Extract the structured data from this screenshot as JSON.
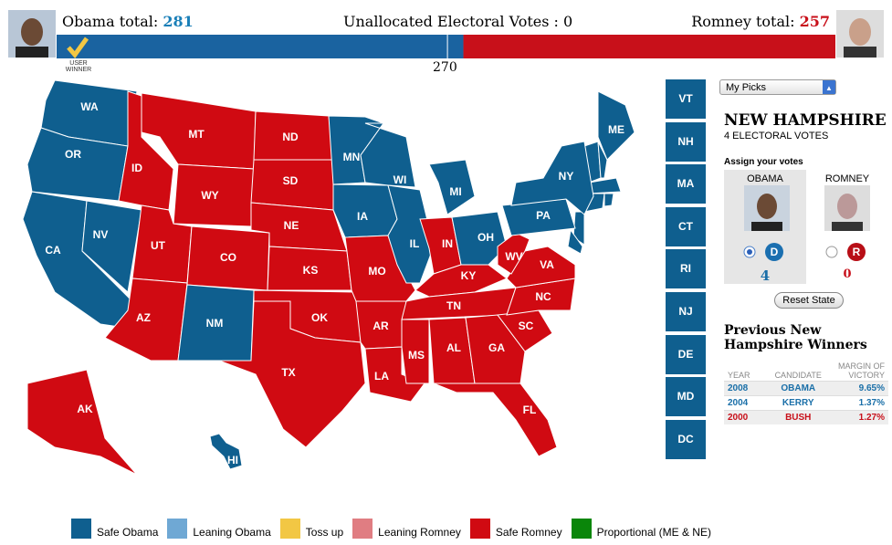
{
  "header": {
    "obama_label": "Obama total:",
    "obama_total": 281,
    "obama_color": "#1a63a0",
    "unallocated_label": "Unallocated Electoral Votes :",
    "unallocated": 0,
    "romney_label": "Romney total:",
    "romney_total": 257,
    "romney_color": "#c8101a",
    "winner_note": "USER WINNER",
    "threshold": 270
  },
  "map": {
    "states": [
      {
        "abbr": "WA",
        "color": "#0f5f8f"
      },
      {
        "abbr": "OR",
        "color": "#0f5f8f"
      },
      {
        "abbr": "CA",
        "color": "#0f5f8f"
      },
      {
        "abbr": "NV",
        "color": "#0f5f8f"
      },
      {
        "abbr": "ID",
        "color": "#d00a12"
      },
      {
        "abbr": "MT",
        "color": "#d00a12"
      },
      {
        "abbr": "WY",
        "color": "#d00a12"
      },
      {
        "abbr": "UT",
        "color": "#d00a12"
      },
      {
        "abbr": "CO",
        "color": "#d00a12"
      },
      {
        "abbr": "AZ",
        "color": "#d00a12"
      },
      {
        "abbr": "NM",
        "color": "#0f5f8f"
      },
      {
        "abbr": "ND",
        "color": "#d00a12"
      },
      {
        "abbr": "SD",
        "color": "#d00a12"
      },
      {
        "abbr": "NE",
        "color": "#d00a12"
      },
      {
        "abbr": "KS",
        "color": "#d00a12"
      },
      {
        "abbr": "OK",
        "color": "#d00a12"
      },
      {
        "abbr": "TX",
        "color": "#d00a12"
      },
      {
        "abbr": "MN",
        "color": "#0f5f8f"
      },
      {
        "abbr": "IA",
        "color": "#0f5f8f"
      },
      {
        "abbr": "MO",
        "color": "#d00a12"
      },
      {
        "abbr": "AR",
        "color": "#d00a12"
      },
      {
        "abbr": "LA",
        "color": "#d00a12"
      },
      {
        "abbr": "WI",
        "color": "#0f5f8f"
      },
      {
        "abbr": "IL",
        "color": "#0f5f8f"
      },
      {
        "abbr": "MI",
        "color": "#0f5f8f"
      },
      {
        "abbr": "IN",
        "color": "#d00a12"
      },
      {
        "abbr": "OH",
        "color": "#0f5f8f"
      },
      {
        "abbr": "KY",
        "color": "#d00a12"
      },
      {
        "abbr": "TN",
        "color": "#d00a12"
      },
      {
        "abbr": "MS",
        "color": "#d00a12"
      },
      {
        "abbr": "AL",
        "color": "#d00a12"
      },
      {
        "abbr": "GA",
        "color": "#d00a12"
      },
      {
        "abbr": "FL",
        "color": "#d00a12"
      },
      {
        "abbr": "SC",
        "color": "#d00a12"
      },
      {
        "abbr": "NC",
        "color": "#d00a12"
      },
      {
        "abbr": "VA",
        "color": "#d00a12"
      },
      {
        "abbr": "WV",
        "color": "#d00a12"
      },
      {
        "abbr": "PA",
        "color": "#0f5f8f"
      },
      {
        "abbr": "NY",
        "color": "#0f5f8f"
      },
      {
        "abbr": "ME",
        "color": "#0f5f8f"
      },
      {
        "abbr": "AK",
        "color": "#d00a12"
      },
      {
        "abbr": "HI",
        "color": "#0f5f8f"
      }
    ],
    "small_states": [
      {
        "abbr": "VT",
        "color": "#0f5f8f"
      },
      {
        "abbr": "NH",
        "color": "#0f5f8f"
      },
      {
        "abbr": "MA",
        "color": "#0f5f8f"
      },
      {
        "abbr": "CT",
        "color": "#0f5f8f"
      },
      {
        "abbr": "RI",
        "color": "#0f5f8f"
      },
      {
        "abbr": "NJ",
        "color": "#0f5f8f"
      },
      {
        "abbr": "DE",
        "color": "#0f5f8f"
      },
      {
        "abbr": "MD",
        "color": "#0f5f8f"
      },
      {
        "abbr": "DC",
        "color": "#0f5f8f"
      }
    ]
  },
  "legend": [
    {
      "label": "Safe Obama",
      "color": "#0f5f8f"
    },
    {
      "label": "Leaning Obama",
      "color": "#6fa8d4"
    },
    {
      "label": "Toss up",
      "color": "#f2c744"
    },
    {
      "label": "Leaning Romney",
      "color": "#e07d82"
    },
    {
      "label": "Safe Romney",
      "color": "#d00a12"
    },
    {
      "label": "Proportional (ME & NE)",
      "color": "#0a860a"
    }
  ],
  "panel": {
    "dropdown": "My Picks",
    "state": "NEW HAMPSHIRE",
    "electoral_votes": "4 ELECTORAL VOTES",
    "assign": "Assign your votes",
    "obama": "OBAMA",
    "romney": "ROMNEY",
    "d": "D",
    "r": "R",
    "obama_votes": 4,
    "romney_votes": 0,
    "reset": "Reset State",
    "history_title": "Previous New Hampshire Winners",
    "table": {
      "headers": [
        "YEAR",
        "CANDIDATE",
        "MARGIN OF VICTORY"
      ],
      "rows": [
        [
          "2008",
          "OBAMA",
          "9.65%"
        ],
        [
          "2004",
          "KERRY",
          "1.37%"
        ],
        [
          "2000",
          "BUSH",
          "1.27%"
        ]
      ]
    }
  }
}
